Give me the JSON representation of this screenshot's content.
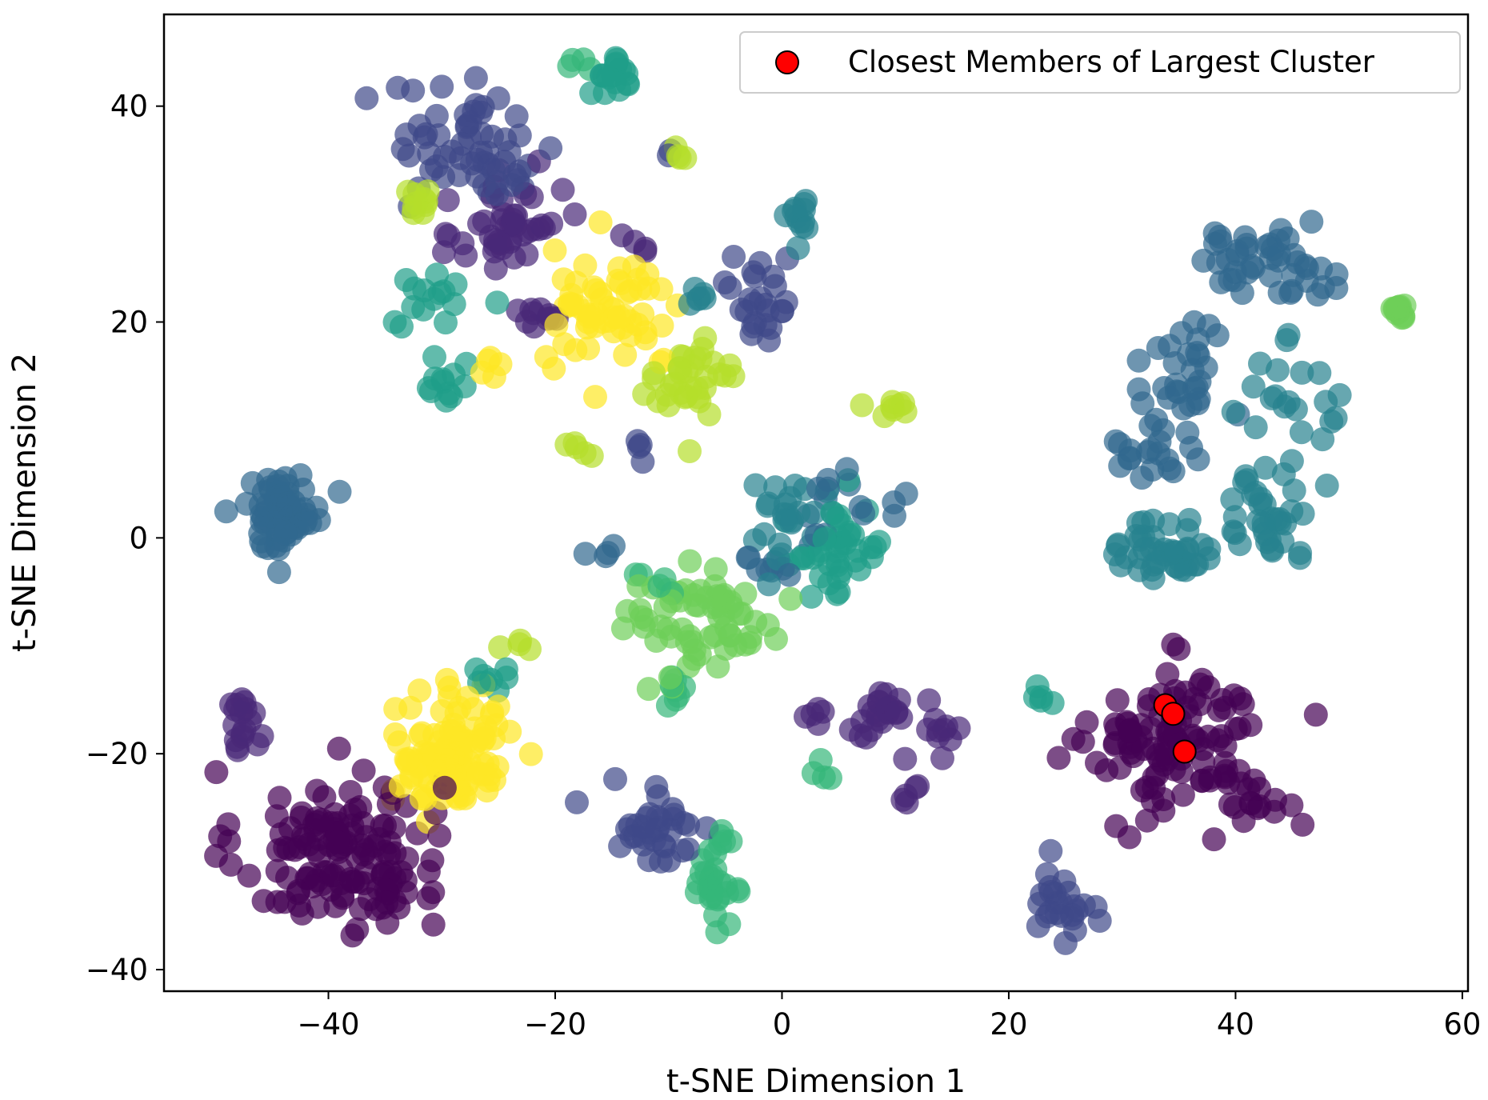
{
  "chart_data": {
    "type": "scatter",
    "title": "",
    "xlabel": "t-SNE Dimension 1",
    "ylabel": "t-SNE Dimension 2",
    "xlim": [
      -54.5,
      60.5
    ],
    "ylim": [
      -42,
      48.5
    ],
    "xticks": [
      -40,
      -20,
      0,
      20,
      40,
      60
    ],
    "yticks": [
      -40,
      -20,
      0,
      20,
      40
    ],
    "xtick_labels": [
      "−40",
      "−20",
      "0",
      "20",
      "40",
      "60"
    ],
    "ytick_labels": [
      "−40",
      "−20",
      "0",
      "20",
      "40"
    ],
    "grid": false,
    "legend": {
      "position": "top-right",
      "entries": [
        {
          "label": "Closest Members of Largest Cluster",
          "color": "#ff0000"
        }
      ]
    },
    "colormap": "viridis",
    "viridis_stops": [
      "#440154",
      "#482878",
      "#3e4989",
      "#31688e",
      "#26828e",
      "#1f9e89",
      "#35b779",
      "#6ece58",
      "#b5de2b",
      "#fde725"
    ],
    "clusters": [
      {
        "name": "c0",
        "center": [
          -39,
          -29
        ],
        "spread": [
          6,
          5
        ],
        "count": 140,
        "color_index": 0
      },
      {
        "name": "c0b",
        "center": [
          35,
          -19
        ],
        "spread": [
          5,
          4.5
        ],
        "count": 110,
        "color_index": 0
      },
      {
        "name": "c0c",
        "center": [
          42,
          -24
        ],
        "spread": [
          2.5,
          2
        ],
        "count": 14,
        "color_index": 0
      },
      {
        "name": "c1",
        "center": [
          -47.5,
          -17
        ],
        "spread": [
          1,
          1.8
        ],
        "count": 18,
        "color_index": 1
      },
      {
        "name": "c1b",
        "center": [
          -24,
          29
        ],
        "spread": [
          3,
          4
        ],
        "count": 45,
        "color_index": 1
      },
      {
        "name": "c1c",
        "center": [
          -21,
          20.5
        ],
        "spread": [
          2,
          0.8
        ],
        "count": 10,
        "color_index": 1
      },
      {
        "name": "c1d",
        "center": [
          8.5,
          -16.5
        ],
        "spread": [
          2,
          1.5
        ],
        "count": 22,
        "color_index": 1
      },
      {
        "name": "c1e",
        "center": [
          13.5,
          -18
        ],
        "spread": [
          1.5,
          1.5
        ],
        "count": 10,
        "color_index": 1
      },
      {
        "name": "c1f",
        "center": [
          3,
          -16
        ],
        "spread": [
          1,
          1
        ],
        "count": 5,
        "color_index": 1
      },
      {
        "name": "c1g",
        "center": [
          11.5,
          -23
        ],
        "spread": [
          0.8,
          1.2
        ],
        "count": 6,
        "color_index": 1
      },
      {
        "name": "c1h",
        "center": [
          -13,
          27.5
        ],
        "spread": [
          1,
          0.8
        ],
        "count": 4,
        "color_index": 1
      },
      {
        "name": "c2",
        "center": [
          -27,
          36
        ],
        "spread": [
          5,
          4
        ],
        "count": 60,
        "color_index": 2
      },
      {
        "name": "c2b",
        "center": [
          -11,
          -26.5
        ],
        "spread": [
          3.5,
          2.5
        ],
        "count": 35,
        "color_index": 2
      },
      {
        "name": "c2c",
        "center": [
          -1.5,
          22
        ],
        "spread": [
          2,
          3
        ],
        "count": 25,
        "color_index": 2
      },
      {
        "name": "c2d",
        "center": [
          24.5,
          -34
        ],
        "spread": [
          1.6,
          2.2
        ],
        "count": 25,
        "color_index": 2
      },
      {
        "name": "c2e",
        "center": [
          -13,
          8
        ],
        "spread": [
          1,
          1
        ],
        "count": 4,
        "color_index": 2
      },
      {
        "name": "c2f",
        "center": [
          -10,
          35.5
        ],
        "spread": [
          0.5,
          0.5
        ],
        "count": 2,
        "color_index": 2
      },
      {
        "name": "c3",
        "center": [
          -44,
          2.5
        ],
        "spread": [
          2.3,
          2.3
        ],
        "count": 70,
        "color_index": 3
      },
      {
        "name": "c3b",
        "center": [
          42.5,
          25.5
        ],
        "spread": [
          4,
          2
        ],
        "count": 45,
        "color_index": 3
      },
      {
        "name": "c3c",
        "center": [
          35,
          15
        ],
        "spread": [
          3,
          4
        ],
        "count": 30,
        "color_index": 3
      },
      {
        "name": "c3d",
        "center": [
          33.5,
          8
        ],
        "spread": [
          3,
          2
        ],
        "count": 20,
        "color_index": 3
      },
      {
        "name": "c3e",
        "center": [
          6,
          3
        ],
        "spread": [
          3,
          2
        ],
        "count": 15,
        "color_index": 3
      },
      {
        "name": "c3f",
        "center": [
          -1,
          -2.5
        ],
        "spread": [
          2,
          1
        ],
        "count": 8,
        "color_index": 3
      },
      {
        "name": "c3g",
        "center": [
          -16,
          -1
        ],
        "spread": [
          1,
          1
        ],
        "count": 4,
        "color_index": 3
      },
      {
        "name": "c4",
        "center": [
          34,
          -1
        ],
        "spread": [
          3,
          2
        ],
        "count": 45,
        "color_index": 4
      },
      {
        "name": "c4b",
        "center": [
          43,
          2.5
        ],
        "spread": [
          3,
          3
        ],
        "count": 35,
        "color_index": 4
      },
      {
        "name": "c4c",
        "center": [
          45,
          13
        ],
        "spread": [
          3,
          3
        ],
        "count": 20,
        "color_index": 4
      },
      {
        "name": "c4d",
        "center": [
          1,
          2
        ],
        "spread": [
          3,
          3
        ],
        "count": 25,
        "color_index": 4
      },
      {
        "name": "c4e",
        "center": [
          1.5,
          29.5
        ],
        "spread": [
          1.2,
          1.5
        ],
        "count": 12,
        "color_index": 4
      },
      {
        "name": "c4f",
        "center": [
          -8,
          22
        ],
        "spread": [
          1,
          1
        ],
        "count": 6,
        "color_index": 4
      },
      {
        "name": "c5",
        "center": [
          5,
          -1
        ],
        "spread": [
          3,
          3
        ],
        "count": 40,
        "color_index": 5
      },
      {
        "name": "c5b",
        "center": [
          -30,
          22
        ],
        "spread": [
          2.5,
          2
        ],
        "count": 15,
        "color_index": 5
      },
      {
        "name": "c5c",
        "center": [
          -29.5,
          14
        ],
        "spread": [
          1.2,
          1.5
        ],
        "count": 12,
        "color_index": 5
      },
      {
        "name": "c5d",
        "center": [
          -15,
          42.5
        ],
        "spread": [
          1.3,
          1.5
        ],
        "count": 18,
        "color_index": 5
      },
      {
        "name": "c5e",
        "center": [
          -26,
          -13
        ],
        "spread": [
          1.5,
          1
        ],
        "count": 8,
        "color_index": 5
      },
      {
        "name": "c5f",
        "center": [
          23,
          -15
        ],
        "spread": [
          1.5,
          1
        ],
        "count": 5,
        "color_index": 5
      },
      {
        "name": "c6",
        "center": [
          -6,
          -31.5
        ],
        "spread": [
          1,
          2.5
        ],
        "count": 30,
        "color_index": 6
      },
      {
        "name": "c6b",
        "center": [
          -9,
          -14
        ],
        "spread": [
          1.5,
          1.5
        ],
        "count": 8,
        "color_index": 6
      },
      {
        "name": "c6c",
        "center": [
          -18,
          44
        ],
        "spread": [
          0.8,
          0.5
        ],
        "count": 4,
        "color_index": 6
      },
      {
        "name": "c6d",
        "center": [
          3,
          -22
        ],
        "spread": [
          0.8,
          0.8
        ],
        "count": 4,
        "color_index": 6
      },
      {
        "name": "c6e",
        "center": [
          -12,
          -4
        ],
        "spread": [
          1.5,
          1.5
        ],
        "count": 5,
        "color_index": 6
      },
      {
        "name": "c7",
        "center": [
          -6,
          -8
        ],
        "spread": [
          3.5,
          3.5
        ],
        "count": 55,
        "color_index": 7
      },
      {
        "name": "c7b",
        "center": [
          54.5,
          21.2
        ],
        "spread": [
          0.4,
          0.4
        ],
        "count": 16,
        "color_index": 7
      },
      {
        "name": "c7c",
        "center": [
          -13,
          -7
        ],
        "spread": [
          2,
          1.5
        ],
        "count": 10,
        "color_index": 7
      },
      {
        "name": "c8",
        "center": [
          -8,
          14
        ],
        "spread": [
          2.5,
          3.5
        ],
        "count": 35,
        "color_index": 8
      },
      {
        "name": "c8b",
        "center": [
          -32,
          31.5
        ],
        "spread": [
          0.8,
          1.3
        ],
        "count": 10,
        "color_index": 8
      },
      {
        "name": "c8c",
        "center": [
          9,
          12.5
        ],
        "spread": [
          1.2,
          1.2
        ],
        "count": 8,
        "color_index": 8
      },
      {
        "name": "c8d",
        "center": [
          -17,
          8
        ],
        "spread": [
          1.2,
          0.5
        ],
        "count": 5,
        "color_index": 8
      },
      {
        "name": "c8e",
        "center": [
          -9.5,
          35.5
        ],
        "spread": [
          0.8,
          0.8
        ],
        "count": 4,
        "color_index": 8
      },
      {
        "name": "c8f",
        "center": [
          -23,
          -9.5
        ],
        "spread": [
          1,
          0.5
        ],
        "count": 4,
        "color_index": 8
      },
      {
        "name": "c9",
        "center": [
          -29,
          -20
        ],
        "spread": [
          3.5,
          3.5
        ],
        "count": 110,
        "color_index": 9
      },
      {
        "name": "c9b",
        "center": [
          -15,
          21
        ],
        "spread": [
          4,
          3.5
        ],
        "count": 60,
        "color_index": 9
      },
      {
        "name": "c9c",
        "center": [
          -26,
          15.5
        ],
        "spread": [
          0.8,
          0.8
        ],
        "count": 5,
        "color_index": 9
      }
    ],
    "highlight_points": [
      {
        "x": 33.8,
        "y": -15.5
      },
      {
        "x": 34.5,
        "y": -16.3
      },
      {
        "x": 35.5,
        "y": -19.8
      }
    ]
  }
}
